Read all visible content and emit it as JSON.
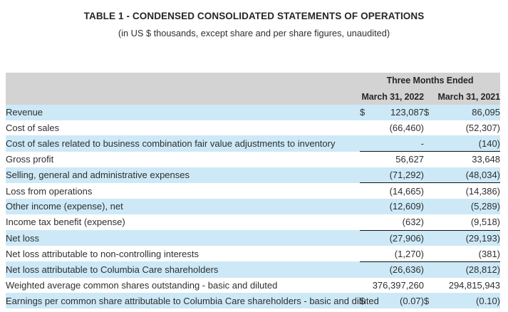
{
  "header": {
    "title": "TABLE 1 - CONDENSED CONSOLIDATED STATEMENTS OF OPERATIONS",
    "subtitle": "(in US $ thousands, except share and per share figures, unaudited)"
  },
  "table": {
    "period_header": "Three Months Ended",
    "columns": [
      "March 31, 2022",
      "March 31, 2021"
    ],
    "rows": [
      {
        "label": "Revenue",
        "currency_2022": "$",
        "value_2022": "123,087",
        "currency_2021": "$",
        "value_2021": "86,095",
        "shaded": true,
        "line_above": false
      },
      {
        "label": "Cost of sales",
        "currency_2022": "",
        "value_2022": "(66,460)",
        "currency_2021": "",
        "value_2021": "(52,307)",
        "shaded": false,
        "line_above": false
      },
      {
        "label": "Cost of sales related to business combination fair value adjustments to inventory",
        "currency_2022": "",
        "value_2022": "-",
        "currency_2021": "",
        "value_2021": "(140)",
        "shaded": true,
        "line_above": false
      },
      {
        "label": "Gross profit",
        "currency_2022": "",
        "value_2022": "56,627",
        "currency_2021": "",
        "value_2021": "33,648",
        "shaded": false,
        "line_above": true
      },
      {
        "label": "Selling, general and administrative expenses",
        "currency_2022": "",
        "value_2022": "(71,292)",
        "currency_2021": "",
        "value_2021": "(48,034)",
        "shaded": true,
        "line_above": false
      },
      {
        "label": "Loss from operations",
        "currency_2022": "",
        "value_2022": "(14,665)",
        "currency_2021": "",
        "value_2021": "(14,386)",
        "shaded": false,
        "line_above": true
      },
      {
        "label": "Other income (expense), net",
        "currency_2022": "",
        "value_2022": "(12,609)",
        "currency_2021": "",
        "value_2021": "(5,289)",
        "shaded": true,
        "line_above": false
      },
      {
        "label": "Income tax benefit (expense)",
        "currency_2022": "",
        "value_2022": "(632)",
        "currency_2021": "",
        "value_2021": "(9,518)",
        "shaded": false,
        "line_above": false
      },
      {
        "label": "Net loss",
        "currency_2022": "",
        "value_2022": "(27,906)",
        "currency_2021": "",
        "value_2021": "(29,193)",
        "shaded": true,
        "line_above": true
      },
      {
        "label": "Net loss attributable to non-controlling interests",
        "currency_2022": "",
        "value_2022": "(1,270)",
        "currency_2021": "",
        "value_2021": "(381)",
        "shaded": false,
        "line_above": false
      },
      {
        "label": "Net loss attributable to Columbia Care shareholders",
        "currency_2022": "",
        "value_2022": "(26,636)",
        "currency_2021": "",
        "value_2021": "(28,812)",
        "shaded": true,
        "line_above": true
      },
      {
        "label": "Weighted average common shares outstanding - basic and diluted",
        "currency_2022": "",
        "value_2022": "376,397,260",
        "currency_2021": "",
        "value_2021": "294,815,943",
        "shaded": false,
        "line_above": false
      },
      {
        "label": "Earnings per common share attributable to Columbia Care shareholders - basic and diluted",
        "currency_2022": "$",
        "value_2022": "(0.07)",
        "currency_2021": "$",
        "value_2021": "(0.10)",
        "shaded": true,
        "line_above": false
      }
    ]
  },
  "colors": {
    "row_shade": "#cde9f7",
    "header_shade": "#d3d3d3",
    "rule_line": "#111111",
    "text": "#2f2f2f",
    "title_text": "#262626"
  }
}
